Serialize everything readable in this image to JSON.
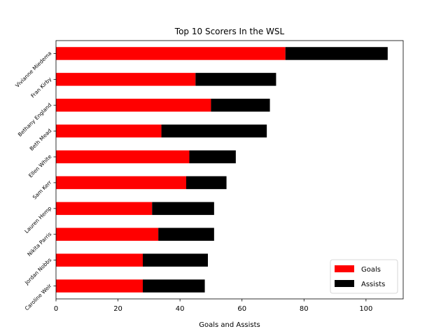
{
  "chart_data": {
    "type": "bar",
    "orientation": "horizontal",
    "stacked": true,
    "title": "Top 10 Scorers In the WSL",
    "xlabel": "Goals and Assists",
    "ylabel": "",
    "xlim": [
      0,
      112
    ],
    "xticks": [
      0,
      20,
      40,
      60,
      80,
      100
    ],
    "categories": [
      "Vivianne Miedema",
      "Fran Kirby",
      "Bethany England",
      "Beth Mead",
      "Ellen White",
      "Sam Kerr",
      "Lauren Hemp",
      "Nikita Parris",
      "Jordan Nobbs",
      "Caroline Weir"
    ],
    "series": [
      {
        "name": "Goals",
        "color": "#ff0000",
        "values": [
          74,
          45,
          50,
          34,
          43,
          42,
          31,
          33,
          28,
          28
        ]
      },
      {
        "name": "Assists",
        "color": "#000000",
        "values": [
          33,
          26,
          19,
          34,
          15,
          13,
          20,
          18,
          21,
          20
        ]
      }
    ],
    "legend_position": "lower-right",
    "grid": false
  }
}
